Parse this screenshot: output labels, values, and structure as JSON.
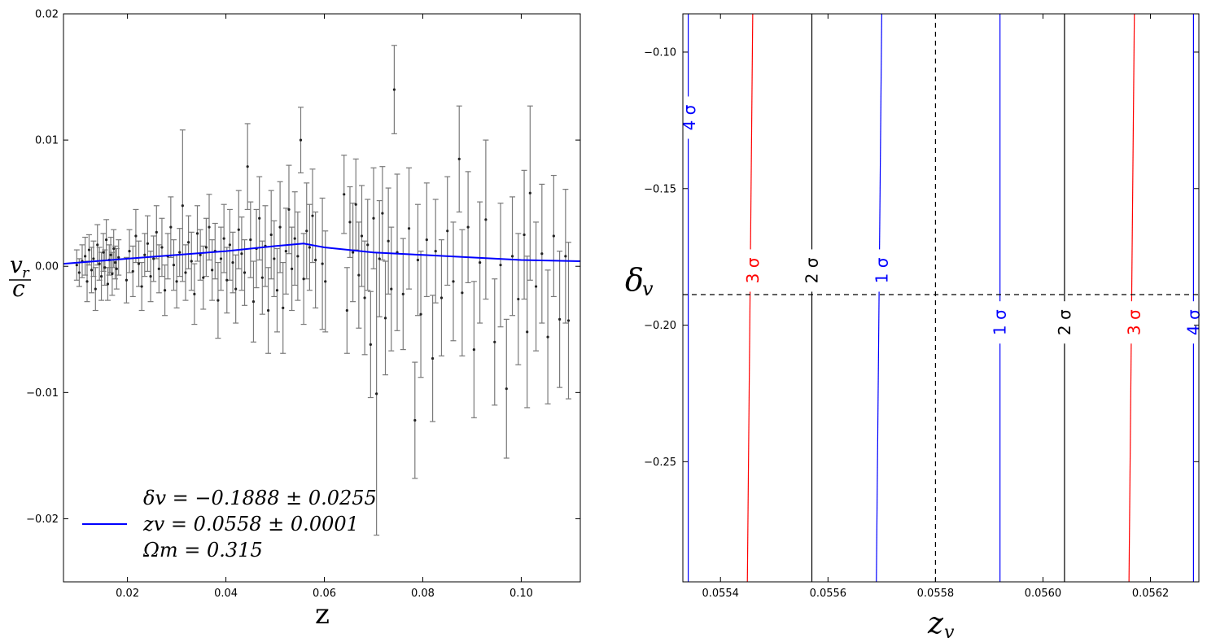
{
  "chart_data": [
    {
      "type": "scatter",
      "xlabel": "z",
      "ylabel_num": "v",
      "ylabel_num_sub": "r",
      "ylabel_den": "c",
      "xlim": [
        0.007,
        0.112
      ],
      "ylim": [
        -0.025,
        0.02
      ],
      "xticks": [
        0.02,
        0.04,
        0.06,
        0.08,
        0.1
      ],
      "xtick_labels": [
        "0.02",
        "0.04",
        "0.06",
        "0.08",
        "0.10"
      ],
      "yticks": [
        -0.02,
        -0.01,
        0.0,
        0.01,
        0.02
      ],
      "ytick_labels": [
        "−0.02",
        "−0.01",
        "0.00",
        "0.01",
        "0.02"
      ],
      "model_curve": {
        "color": "#0000ff",
        "x": [
          0.007,
          0.02,
          0.03,
          0.04,
          0.05,
          0.0558,
          0.06,
          0.07,
          0.08,
          0.09,
          0.1,
          0.112
        ],
        "y": [
          0.0002,
          0.0006,
          0.0009,
          0.0012,
          0.0016,
          0.0018,
          0.0015,
          0.0011,
          0.0009,
          0.0007,
          0.0005,
          0.0004
        ]
      },
      "legend": {
        "placement": "lower-left",
        "line1": "δv = −0.1888 ± 0.0255",
        "line2": "zv = 0.0558 ± 0.0001",
        "line3": "Ωm = 0.315"
      },
      "points": [
        {
          "x": 0.0097,
          "y": 0.0001,
          "e": 0.0012
        },
        {
          "x": 0.0102,
          "y": -0.0005,
          "e": 0.0011
        },
        {
          "x": 0.0108,
          "y": 0.0004,
          "e": 0.0013
        },
        {
          "x": 0.0114,
          "y": 0.0008,
          "e": 0.0015
        },
        {
          "x": 0.0118,
          "y": -0.0012,
          "e": 0.0016
        },
        {
          "x": 0.0122,
          "y": 0.0013,
          "e": 0.0012
        },
        {
          "x": 0.0127,
          "y": -0.0003,
          "e": 0.0018
        },
        {
          "x": 0.0131,
          "y": 0.0006,
          "e": 0.0014
        },
        {
          "x": 0.0135,
          "y": -0.0018,
          "e": 0.0017
        },
        {
          "x": 0.0139,
          "y": 0.0017,
          "e": 0.0016
        },
        {
          "x": 0.0143,
          "y": 0.0002,
          "e": 0.0013
        },
        {
          "x": 0.0147,
          "y": -0.0008,
          "e": 0.0019
        },
        {
          "x": 0.0151,
          "y": 0.0011,
          "e": 0.0015
        },
        {
          "x": 0.0154,
          "y": -0.0001,
          "e": 0.0014
        },
        {
          "x": 0.0157,
          "y": 0.0021,
          "e": 0.0016
        },
        {
          "x": 0.016,
          "y": -0.0014,
          "e": 0.0013
        },
        {
          "x": 0.0163,
          "y": 0.0005,
          "e": 0.0012
        },
        {
          "x": 0.0166,
          "y": 0.0009,
          "e": 0.0014
        },
        {
          "x": 0.0169,
          "y": -0.0006,
          "e": 0.0017
        },
        {
          "x": 0.0172,
          "y": 0.0014,
          "e": 0.0015
        },
        {
          "x": 0.0175,
          "y": 0.0003,
          "e": 0.0013
        },
        {
          "x": 0.0178,
          "y": -0.0002,
          "e": 0.0016
        },
        {
          "x": 0.0182,
          "y": 0.0007,
          "e": 0.0014
        },
        {
          "x": 0.0198,
          "y": -0.0011,
          "e": 0.0018
        },
        {
          "x": 0.0204,
          "y": 0.0012,
          "e": 0.0017
        },
        {
          "x": 0.0211,
          "y": -0.0004,
          "e": 0.002
        },
        {
          "x": 0.0217,
          "y": 0.0024,
          "e": 0.0021
        },
        {
          "x": 0.0223,
          "y": 0.0002,
          "e": 0.0018
        },
        {
          "x": 0.0229,
          "y": -0.0016,
          "e": 0.0019
        },
        {
          "x": 0.0235,
          "y": 0.0009,
          "e": 0.0017
        },
        {
          "x": 0.0241,
          "y": 0.0018,
          "e": 0.0022
        },
        {
          "x": 0.0247,
          "y": -0.0008,
          "e": 0.002
        },
        {
          "x": 0.0253,
          "y": 0.0006,
          "e": 0.0018
        },
        {
          "x": 0.0259,
          "y": 0.0027,
          "e": 0.0021
        },
        {
          "x": 0.0264,
          "y": -0.0002,
          "e": 0.0019
        },
        {
          "x": 0.027,
          "y": 0.0015,
          "e": 0.0023
        },
        {
          "x": 0.0276,
          "y": -0.0019,
          "e": 0.002
        },
        {
          "x": 0.0282,
          "y": 0.0008,
          "e": 0.0018
        },
        {
          "x": 0.0288,
          "y": 0.0031,
          "e": 0.0024
        },
        {
          "x": 0.0294,
          "y": 0.0001,
          "e": 0.002
        },
        {
          "x": 0.03,
          "y": -0.0012,
          "e": 0.0021
        },
        {
          "x": 0.0306,
          "y": 0.0011,
          "e": 0.0019
        },
        {
          "x": 0.0312,
          "y": 0.0048,
          "e": 0.006
        },
        {
          "x": 0.0318,
          "y": -0.0005,
          "e": 0.0022
        },
        {
          "x": 0.0324,
          "y": 0.0019,
          "e": 0.0021
        },
        {
          "x": 0.033,
          "y": 0.0004,
          "e": 0.0023
        },
        {
          "x": 0.0336,
          "y": -0.0022,
          "e": 0.0024
        },
        {
          "x": 0.0342,
          "y": 0.0026,
          "e": 0.0022
        },
        {
          "x": 0.0348,
          "y": 0.0009,
          "e": 0.002
        },
        {
          "x": 0.0354,
          "y": -0.0009,
          "e": 0.0025
        },
        {
          "x": 0.036,
          "y": 0.0015,
          "e": 0.0023
        },
        {
          "x": 0.0366,
          "y": 0.0031,
          "e": 0.0026
        },
        {
          "x": 0.0372,
          "y": -0.0003,
          "e": 0.0024
        },
        {
          "x": 0.0378,
          "y": 0.0012,
          "e": 0.0022
        },
        {
          "x": 0.0384,
          "y": -0.0027,
          "e": 0.003
        },
        {
          "x": 0.039,
          "y": 0.0006,
          "e": 0.0025
        },
        {
          "x": 0.0396,
          "y": 0.0022,
          "e": 0.0027
        },
        {
          "x": 0.0402,
          "y": -0.0011,
          "e": 0.0026
        },
        {
          "x": 0.0408,
          "y": 0.0017,
          "e": 0.0028
        },
        {
          "x": 0.0414,
          "y": 0.0003,
          "e": 0.0024
        },
        {
          "x": 0.042,
          "y": -0.0018,
          "e": 0.0027
        },
        {
          "x": 0.0426,
          "y": 0.0029,
          "e": 0.0031
        },
        {
          "x": 0.0432,
          "y": 0.001,
          "e": 0.0029
        },
        {
          "x": 0.0438,
          "y": -0.0005,
          "e": 0.0026
        },
        {
          "x": 0.0444,
          "y": 0.0079,
          "e": 0.0034
        },
        {
          "x": 0.045,
          "y": 0.0021,
          "e": 0.003
        },
        {
          "x": 0.0456,
          "y": -0.0028,
          "e": 0.0032
        },
        {
          "x": 0.0462,
          "y": 0.0014,
          "e": 0.0031
        },
        {
          "x": 0.0468,
          "y": 0.0038,
          "e": 0.0033
        },
        {
          "x": 0.0474,
          "y": -0.0009,
          "e": 0.0029
        },
        {
          "x": 0.048,
          "y": 0.0016,
          "e": 0.0032
        },
        {
          "x": 0.0486,
          "y": -0.0035,
          "e": 0.0034
        },
        {
          "x": 0.0492,
          "y": 0.0025,
          "e": 0.0035
        },
        {
          "x": 0.0498,
          "y": 0.0006,
          "e": 0.003
        },
        {
          "x": 0.0504,
          "y": -0.0019,
          "e": 0.0033
        },
        {
          "x": 0.051,
          "y": 0.0031,
          "e": 0.0036
        },
        {
          "x": 0.0516,
          "y": -0.0033,
          "e": 0.0036
        },
        {
          "x": 0.0522,
          "y": 0.0012,
          "e": 0.0034
        },
        {
          "x": 0.0528,
          "y": 0.0045,
          "e": 0.0035
        },
        {
          "x": 0.0534,
          "y": -0.0002,
          "e": 0.0033
        },
        {
          "x": 0.054,
          "y": 0.0022,
          "e": 0.0037
        },
        {
          "x": 0.0546,
          "y": 0.0008,
          "e": 0.0035
        },
        {
          "x": 0.0552,
          "y": 0.01,
          "e": 0.0026
        },
        {
          "x": 0.0558,
          "y": -0.001,
          "e": 0.0036
        },
        {
          "x": 0.0564,
          "y": 0.0028,
          "e": 0.0038
        },
        {
          "x": 0.057,
          "y": 0.0015,
          "e": 0.0034
        },
        {
          "x": 0.0576,
          "y": 0.004,
          "e": 0.0037
        },
        {
          "x": 0.0582,
          "y": 0.0005,
          "e": 0.0038
        },
        {
          "x": 0.0596,
          "y": 0.0002,
          "e": 0.0052
        },
        {
          "x": 0.0602,
          "y": -0.0012,
          "e": 0.004
        },
        {
          "x": 0.064,
          "y": 0.0057,
          "e": 0.0031
        },
        {
          "x": 0.0646,
          "y": -0.0035,
          "e": 0.0034
        },
        {
          "x": 0.0652,
          "y": 0.0035,
          "e": 0.0028
        },
        {
          "x": 0.0658,
          "y": 0.0011,
          "e": 0.0039
        },
        {
          "x": 0.0664,
          "y": 0.0049,
          "e": 0.0036
        },
        {
          "x": 0.067,
          "y": -0.0007,
          "e": 0.0042
        },
        {
          "x": 0.0676,
          "y": 0.0024,
          "e": 0.004
        },
        {
          "x": 0.0682,
          "y": -0.0025,
          "e": 0.0045
        },
        {
          "x": 0.0688,
          "y": 0.0017,
          "e": 0.0036
        },
        {
          "x": 0.0694,
          "y": -0.0062,
          "e": 0.0042
        },
        {
          "x": 0.07,
          "y": 0.0038,
          "e": 0.004
        },
        {
          "x": 0.0706,
          "y": -0.0101,
          "e": 0.0112
        },
        {
          "x": 0.0712,
          "y": 0.0006,
          "e": 0.0046
        },
        {
          "x": 0.0718,
          "y": 0.0042,
          "e": 0.0037
        },
        {
          "x": 0.0724,
          "y": -0.0041,
          "e": 0.0045
        },
        {
          "x": 0.073,
          "y": 0.002,
          "e": 0.0042
        },
        {
          "x": 0.0736,
          "y": -0.0018,
          "e": 0.0049
        },
        {
          "x": 0.0742,
          "y": 0.014,
          "e": 0.0035
        },
        {
          "x": 0.0748,
          "y": 0.0011,
          "e": 0.0062
        },
        {
          "x": 0.076,
          "y": -0.0022,
          "e": 0.0044
        },
        {
          "x": 0.0772,
          "y": 0.003,
          "e": 0.0048
        },
        {
          "x": 0.0784,
          "y": -0.0122,
          "e": 0.0046
        },
        {
          "x": 0.079,
          "y": 0.0005,
          "e": 0.0044
        },
        {
          "x": 0.0796,
          "y": -0.0038,
          "e": 0.005
        },
        {
          "x": 0.0808,
          "y": 0.0021,
          "e": 0.0045
        },
        {
          "x": 0.082,
          "y": -0.0073,
          "e": 0.005
        },
        {
          "x": 0.0826,
          "y": 0.0012,
          "e": 0.0041
        },
        {
          "x": 0.0838,
          "y": -0.0025,
          "e": 0.0046
        },
        {
          "x": 0.085,
          "y": 0.0028,
          "e": 0.0043
        },
        {
          "x": 0.0862,
          "y": -0.0012,
          "e": 0.0047
        },
        {
          "x": 0.0874,
          "y": 0.0085,
          "e": 0.0042
        },
        {
          "x": 0.088,
          "y": -0.0021,
          "e": 0.005
        },
        {
          "x": 0.0892,
          "y": 0.0031,
          "e": 0.0044
        },
        {
          "x": 0.0904,
          "y": -0.0066,
          "e": 0.0054
        },
        {
          "x": 0.0916,
          "y": 0.0003,
          "e": 0.0048
        },
        {
          "x": 0.0928,
          "y": 0.0037,
          "e": 0.0063
        },
        {
          "x": 0.0946,
          "y": -0.006,
          "e": 0.005
        },
        {
          "x": 0.0958,
          "y": 0.0001,
          "e": 0.0049
        },
        {
          "x": 0.097,
          "y": -0.0097,
          "e": 0.0055
        },
        {
          "x": 0.0982,
          "y": 0.0008,
          "e": 0.0047
        },
        {
          "x": 0.0994,
          "y": -0.0026,
          "e": 0.0052
        },
        {
          "x": 0.1006,
          "y": 0.0025,
          "e": 0.0051
        },
        {
          "x": 0.1012,
          "y": -0.0052,
          "e": 0.006
        },
        {
          "x": 0.1018,
          "y": 0.0058,
          "e": 0.0069
        },
        {
          "x": 0.103,
          "y": -0.0016,
          "e": 0.0051
        },
        {
          "x": 0.1042,
          "y": 0.001,
          "e": 0.0055
        },
        {
          "x": 0.1054,
          "y": -0.0056,
          "e": 0.0053
        },
        {
          "x": 0.1066,
          "y": 0.0024,
          "e": 0.0048
        },
        {
          "x": 0.1078,
          "y": -0.0042,
          "e": 0.0054
        },
        {
          "x": 0.109,
          "y": 0.0008,
          "e": 0.0053
        },
        {
          "x": 0.1096,
          "y": -0.0043,
          "e": 0.0062
        }
      ]
    },
    {
      "type": "contour",
      "xlabel": "z",
      "xlabel_sub": "v",
      "ylabel": "δ",
      "ylabel_sub": "v",
      "xlim": [
        0.05533,
        0.05629
      ],
      "ylim": [
        -0.294,
        -0.086
      ],
      "xticks": [
        0.0554,
        0.0556,
        0.0558,
        0.056,
        0.0562
      ],
      "xtick_labels": [
        "0.0554",
        "0.0556",
        "0.0558",
        "0.0560",
        "0.0562"
      ],
      "yticks": [
        -0.1,
        -0.15,
        -0.2,
        -0.25
      ],
      "ytick_labels": [
        "−0.10",
        "−0.15",
        "−0.20",
        "−0.25"
      ],
      "best_fit": {
        "x": 0.0558,
        "y": -0.1888
      },
      "contours": [
        {
          "level": "4 σ",
          "color": "#0000ff",
          "x_bottom": 0.05534,
          "x_top": 0.05534
        },
        {
          "level": "3 σ",
          "color": "#ff0000",
          "x_bottom": 0.05545,
          "x_top": 0.05546
        },
        {
          "level": "2 σ",
          "color": "#000000",
          "x_bottom": 0.05557,
          "x_top": 0.05557
        },
        {
          "level": "1 σ",
          "color": "#0000ff",
          "x_bottom": 0.05569,
          "x_top": 0.0557
        },
        {
          "level": "1 σ",
          "color": "#0000ff",
          "x_bottom": 0.05592,
          "x_top": 0.05592
        },
        {
          "level": "2 σ",
          "color": "#000000",
          "x_bottom": 0.05604,
          "x_top": 0.05604
        },
        {
          "level": "3 σ",
          "color": "#ff0000",
          "x_bottom": 0.05616,
          "x_top": 0.05617
        },
        {
          "level": "4 σ",
          "color": "#0000ff",
          "x_bottom": 0.05628,
          "x_top": 0.05628
        }
      ],
      "contour_labels": [
        {
          "text": "4 σ",
          "color": "#0000ff",
          "x": 0.05534,
          "y": -0.124
        },
        {
          "text": "3 σ",
          "color": "#ff0000",
          "x": 0.05546,
          "y": -0.18
        },
        {
          "text": "2 σ",
          "color": "#000000",
          "x": 0.05557,
          "y": -0.18
        },
        {
          "text": "1 σ",
          "color": "#0000ff",
          "x": 0.0557,
          "y": -0.18
        },
        {
          "text": "1 σ",
          "color": "#0000ff",
          "x": 0.05592,
          "y": -0.199
        },
        {
          "text": "2 σ",
          "color": "#000000",
          "x": 0.05604,
          "y": -0.199
        },
        {
          "text": "3 σ",
          "color": "#ff0000",
          "x": 0.05617,
          "y": -0.199
        },
        {
          "text": "4 σ",
          "color": "#0000ff",
          "x": 0.05628,
          "y": -0.199
        }
      ]
    }
  ]
}
